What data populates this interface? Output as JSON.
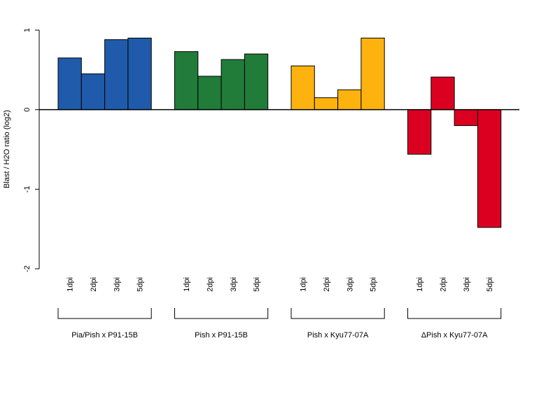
{
  "chart_data": {
    "type": "bar",
    "title": "",
    "xlabel": "",
    "ylabel": "Blast / H2O ratio (log2)",
    "ylim": [
      -2,
      1
    ],
    "yticks": [
      "-2",
      "-1",
      "0",
      "1"
    ],
    "grid": false,
    "legend": "none",
    "categories": [
      "1dpi",
      "2dpi",
      "3dpi",
      "5dpi"
    ],
    "series": [
      {
        "name": "Pia/Pish x P91-15B",
        "color": "#1F5BAA",
        "values": [
          0.65,
          0.45,
          0.88,
          0.9
        ]
      },
      {
        "name": "Pish x P91-15B",
        "color": "#217C39",
        "values": [
          0.73,
          0.42,
          0.63,
          0.7
        ]
      },
      {
        "name": "Pish x Kyu77-07A",
        "color": "#FDB20E",
        "values": [
          0.55,
          0.15,
          0.25,
          0.9
        ]
      },
      {
        "name": "ΔPish x Kyu77-07A",
        "color": "#DC0020",
        "values": [
          -0.56,
          0.41,
          -0.2,
          -1.48
        ]
      }
    ]
  }
}
